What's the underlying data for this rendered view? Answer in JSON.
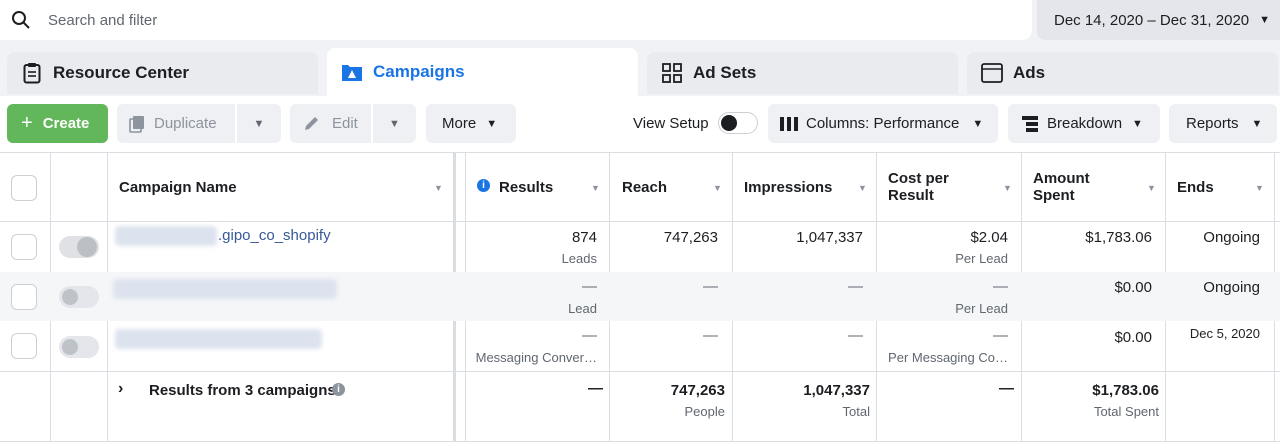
{
  "search": {
    "placeholder": "Search and filter"
  },
  "date_range": {
    "label": "Dec 14, 2020 – Dec 31, 2020"
  },
  "tabs": [
    {
      "label": "Resource Center",
      "icon": "clipboard-icon"
    },
    {
      "label": "Campaigns",
      "icon": "campaigns-icon",
      "active": true
    },
    {
      "label": "Ad Sets",
      "icon": "grid-icon"
    },
    {
      "label": "Ads",
      "icon": "ad-icon"
    }
  ],
  "toolbar": {
    "create": "Create",
    "duplicate": "Duplicate",
    "edit": "Edit",
    "more": "More",
    "view_setup": "View Setup",
    "columns": "Columns: Performance",
    "breakdown": "Breakdown",
    "reports": "Reports"
  },
  "columns": {
    "name": "Campaign Name",
    "results": "Results",
    "reach": "Reach",
    "impressions": "Impressions",
    "cost1": "Cost per",
    "cost2": "Result",
    "amount1": "Amount",
    "amount2": "Spent",
    "ends": "Ends"
  },
  "rows": [
    {
      "name": ".gipo_co_shopify",
      "toggle_on": true,
      "results": "874",
      "results_sub": "Leads",
      "reach": "747,263",
      "impressions": "1,047,337",
      "cost": "$2.04",
      "cost_sub": "Per Lead",
      "amount": "$1,783.06",
      "ends": "Ongoing"
    },
    {
      "name": "",
      "toggle_on": false,
      "results": "—",
      "results_sub": "Lead",
      "reach": "—",
      "impressions": "—",
      "cost": "—",
      "cost_sub": "Per Lead",
      "amount": "$0.00",
      "ends": "Ongoing"
    },
    {
      "name": "",
      "toggle_on": false,
      "results": "—",
      "results_sub": "Messaging Conver…",
      "reach": "—",
      "impressions": "—",
      "cost": "—",
      "cost_sub": "Per Messaging Co…",
      "amount": "$0.00",
      "ends": "Dec 5, 2020"
    }
  ],
  "totals": {
    "label": "Results from 3 campaigns",
    "results": "—",
    "reach": "747,263",
    "reach_sub": "People",
    "impressions": "1,047,337",
    "impressions_sub": "Total",
    "cost": "—",
    "amount": "$1,783.06",
    "amount_sub": "Total Spent"
  },
  "colors": {
    "accent": "#1b74e4",
    "create": "#62b75a"
  }
}
